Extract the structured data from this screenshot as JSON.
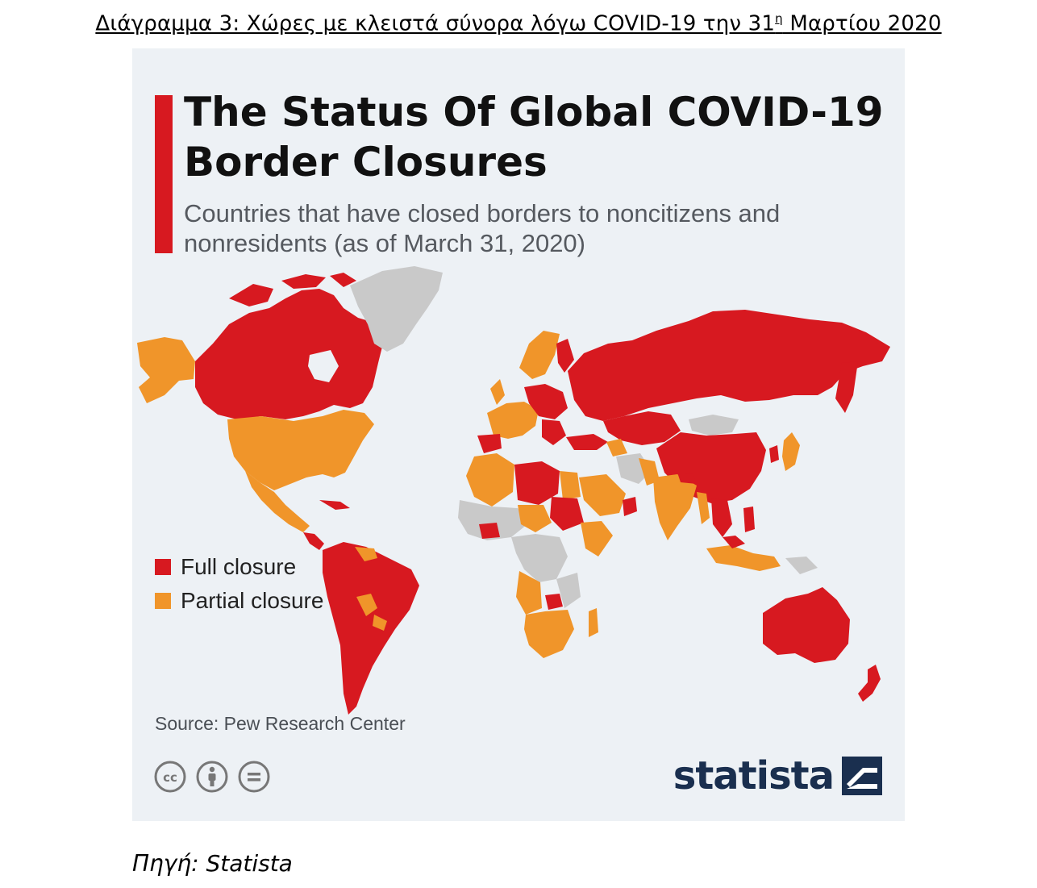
{
  "caption": {
    "text": "Διάγραμμα 3: Χώρες με κλειστά σύνορα λόγω COVID-19 την 31",
    "superscript": "η",
    "text_after": " Μαρτίου 2020"
  },
  "infographic": {
    "title": "The Status Of Global COVID-19 Border Closures",
    "subtitle": "Countries that have closed borders to noncitizens and nonresidents (as of March 31, 2020)",
    "legend": [
      {
        "label": "Full closure",
        "color": "#d71920"
      },
      {
        "label": "Partial closure",
        "color": "#f0952a"
      }
    ],
    "no_closure_color": "#c9c9c9",
    "source": "Source: Pew Research Center",
    "license_icons": [
      "cc-icon",
      "attribution-icon",
      "no-derivatives-icon"
    ],
    "brand": "statista"
  },
  "source_line": "Πηγή: Statista"
}
